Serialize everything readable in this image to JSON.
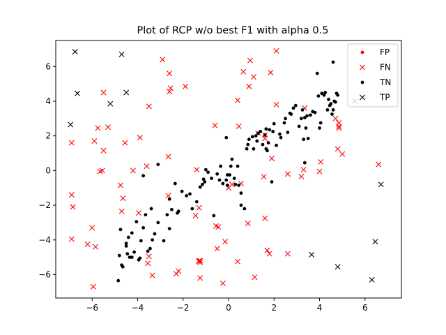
{
  "chart_data": {
    "type": "scatter",
    "title": "Plot of RCP w/o best F1 with alpha 0.5",
    "xlabel": "",
    "ylabel": "",
    "xlim": [
      -7.6,
      7.6
    ],
    "ylim": [
      -7.35,
      7.5
    ],
    "xticks": [
      -6,
      -4,
      -2,
      0,
      2,
      4,
      6
    ],
    "yticks": [
      -6,
      -4,
      -2,
      0,
      2,
      4,
      6
    ],
    "xtick_labels": [
      "−6",
      "−4",
      "−2",
      "0",
      "2",
      "4",
      "6"
    ],
    "ytick_labels": [
      "−6",
      "−4",
      "−2",
      "0",
      "2",
      "4",
      "6"
    ],
    "grid": false,
    "legend_position": "top-right",
    "series": [
      {
        "name": "FP",
        "marker": "dot",
        "color": "#ff0000",
        "points": []
      },
      {
        "name": "FN",
        "marker": "x",
        "color": "#ff0000",
        "points": [
          [
            -6.9,
            1.6
          ],
          [
            -6.9,
            -1.4
          ],
          [
            -6.85,
            -2.1
          ],
          [
            -6.9,
            -3.95
          ],
          [
            -6.0,
            -3.3
          ],
          [
            -6.2,
            -4.25
          ],
          [
            -5.85,
            -4.4
          ],
          [
            -5.95,
            -6.7
          ],
          [
            -5.9,
            1.7
          ],
          [
            -5.75,
            2.45
          ],
          [
            -5.65,
            -0.05
          ],
          [
            -5.55,
            0.0
          ],
          [
            -5.5,
            1.15
          ],
          [
            -5.3,
            2.5
          ],
          [
            -5.5,
            4.5
          ],
          [
            -4.75,
            -0.85
          ],
          [
            -4.65,
            -1.6
          ],
          [
            -4.7,
            -2.35
          ],
          [
            -4.55,
            1.6
          ],
          [
            -4.2,
            0.0
          ],
          [
            -3.95,
            -2.45
          ],
          [
            -3.9,
            1.9
          ],
          [
            -3.55,
            -5.35
          ],
          [
            -3.6,
            0.25
          ],
          [
            -3.5,
            3.7
          ],
          [
            -3.5,
            -4.95
          ],
          [
            -3.35,
            -6.05
          ],
          [
            -2.9,
            6.4
          ],
          [
            -2.6,
            5.6
          ],
          [
            -2.55,
            4.75
          ],
          [
            -2.6,
            4.55
          ],
          [
            -2.65,
            0.8
          ],
          [
            -2.65,
            -1.45
          ],
          [
            -2.3,
            -5.95
          ],
          [
            -2.2,
            -5.8
          ],
          [
            -1.9,
            4.85
          ],
          [
            -1.45,
            -2.6
          ],
          [
            -1.4,
            0.05
          ],
          [
            -1.3,
            -2.15
          ],
          [
            -1.25,
            -5.2
          ],
          [
            -1.25,
            -5.3
          ],
          [
            -1.3,
            -5.2
          ],
          [
            -1.3,
            -5.25
          ],
          [
            -1.25,
            -6.2
          ],
          [
            -0.6,
            2.6
          ],
          [
            -0.55,
            -3.2
          ],
          [
            -0.5,
            -4.5
          ],
          [
            -0.45,
            -3.25
          ],
          [
            -0.25,
            -6.5
          ],
          [
            -0.15,
            -4.1
          ],
          [
            0.0,
            -1.0
          ],
          [
            0.15,
            -0.8
          ],
          [
            0.4,
            -5.25
          ],
          [
            0.4,
            4.05
          ],
          [
            0.45,
            2.55
          ],
          [
            0.55,
            -0.75
          ],
          [
            0.65,
            5.7
          ],
          [
            0.85,
            -3.05
          ],
          [
            0.9,
            4.85
          ],
          [
            0.95,
            6.35
          ],
          [
            1.1,
            5.4
          ],
          [
            1.15,
            -6.15
          ],
          [
            1.3,
            2.15
          ],
          [
            1.55,
            -0.35
          ],
          [
            1.6,
            2.05
          ],
          [
            1.6,
            1.85
          ],
          [
            1.6,
            -2.75
          ],
          [
            1.7,
            -4.6
          ],
          [
            1.8,
            -4.8
          ],
          [
            1.85,
            5.65
          ],
          [
            1.9,
            0.7
          ],
          [
            2.1,
            3.8
          ],
          [
            2.1,
            6.9
          ],
          [
            2.6,
            -0.2
          ],
          [
            2.6,
            -4.8
          ],
          [
            3.2,
            -0.35
          ],
          [
            3.35,
            3.6
          ],
          [
            3.3,
            0.05
          ],
          [
            4.0,
            -0.05
          ],
          [
            4.05,
            0.5
          ],
          [
            4.7,
            3.0
          ],
          [
            4.8,
            1.25
          ],
          [
            4.85,
            2.75
          ],
          [
            4.85,
            2.55
          ],
          [
            4.85,
            2.45
          ],
          [
            5.0,
            0.95
          ],
          [
            5.55,
            4.0
          ],
          [
            6.6,
            0.35
          ]
        ]
      },
      {
        "name": "TN",
        "marker": "dot",
        "color": "#000000",
        "points": [
          [
            -4.85,
            -6.35
          ],
          [
            -4.8,
            -4.9
          ],
          [
            -4.7,
            -5.45
          ],
          [
            -4.65,
            -5.55
          ],
          [
            -4.75,
            -3.4
          ],
          [
            -4.5,
            -4.2
          ],
          [
            -4.5,
            -4.35
          ],
          [
            -4.45,
            -4.8
          ],
          [
            -4.4,
            -3.85
          ],
          [
            -4.35,
            -5.0
          ],
          [
            -4.25,
            -3.6
          ],
          [
            -4.25,
            -5.0
          ],
          [
            -4.15,
            -4.7
          ],
          [
            -4.05,
            -2.95
          ],
          [
            -3.95,
            -5.15
          ],
          [
            -3.9,
            -5.05
          ],
          [
            -3.85,
            -4.05
          ],
          [
            -3.75,
            -0.3
          ],
          [
            -3.75,
            -3.3
          ],
          [
            -3.65,
            -2.55
          ],
          [
            -3.55,
            -4.65
          ],
          [
            -3.45,
            -4.5
          ],
          [
            -3.4,
            -2.2
          ],
          [
            -3.35,
            -4.0
          ],
          [
            -3.25,
            -3.65
          ],
          [
            -3.1,
            -3.0
          ],
          [
            -3.1,
            0.35
          ],
          [
            -2.85,
            -4.05
          ],
          [
            -2.7,
            -2.55
          ],
          [
            -2.6,
            -3.35
          ],
          [
            -2.6,
            -1.65
          ],
          [
            -2.5,
            -2.25
          ],
          [
            -2.35,
            -0.75
          ],
          [
            -2.25,
            -2.45
          ],
          [
            -2.2,
            -2.35
          ],
          [
            -2.05,
            -1.2
          ],
          [
            -1.85,
            -1.45
          ],
          [
            -1.7,
            -1.35
          ],
          [
            -1.6,
            -2.2
          ],
          [
            -1.4,
            -1.8
          ],
          [
            -1.25,
            -0.95
          ],
          [
            -1.15,
            -0.8
          ],
          [
            -1.1,
            -0.5
          ],
          [
            -1.05,
            -0.65
          ],
          [
            -1.0,
            0.05
          ],
          [
            -0.9,
            -0.1
          ],
          [
            -0.75,
            -0.45
          ],
          [
            -0.65,
            -2.6
          ],
          [
            -0.5,
            -0.2
          ],
          [
            -0.4,
            -0.55
          ],
          [
            -0.35,
            0.25
          ],
          [
            -0.25,
            -0.75
          ],
          [
            -0.1,
            -0.55
          ],
          [
            -0.05,
            -0.85
          ],
          [
            -0.1,
            1.9
          ],
          [
            -0.05,
            -0.25
          ],
          [
            0.05,
            -0.25
          ],
          [
            0.1,
            0.25
          ],
          [
            0.15,
            0.65
          ],
          [
            0.25,
            -0.45
          ],
          [
            0.3,
            -0.8
          ],
          [
            0.4,
            0.25
          ],
          [
            0.45,
            -0.85
          ],
          [
            0.55,
            -1.3
          ],
          [
            0.55,
            -2.0
          ],
          [
            0.7,
            -2.2
          ],
          [
            0.8,
            1.25
          ],
          [
            0.85,
            1.5
          ],
          [
            0.9,
            1.8
          ],
          [
            1.05,
            1.95
          ],
          [
            1.1,
            1.25
          ],
          [
            1.2,
            2.0
          ],
          [
            1.25,
            1.7
          ],
          [
            1.3,
            2.15
          ],
          [
            1.4,
            2.25
          ],
          [
            1.5,
            1.5
          ],
          [
            1.6,
            2.05
          ],
          [
            1.65,
            2.4
          ],
          [
            1.65,
            1.25
          ],
          [
            1.7,
            1.15
          ],
          [
            1.75,
            1.6
          ],
          [
            1.8,
            2.35
          ],
          [
            1.9,
            -0.65
          ],
          [
            1.95,
            2.25
          ],
          [
            2.0,
            2.7
          ],
          [
            2.1,
            1.45
          ],
          [
            2.25,
            2.1
          ],
          [
            2.3,
            1.9
          ],
          [
            2.45,
            2.75
          ],
          [
            2.5,
            3.0
          ],
          [
            2.6,
            2.2
          ],
          [
            2.7,
            3.3
          ],
          [
            2.75,
            3.25
          ],
          [
            2.85,
            3.6
          ],
          [
            2.95,
            3.75
          ],
          [
            3.1,
            2.55
          ],
          [
            3.2,
            3.0
          ],
          [
            3.25,
            3.5
          ],
          [
            3.3,
            1.8
          ],
          [
            3.35,
            3.05
          ],
          [
            3.4,
            2.45
          ],
          [
            3.45,
            3.15
          ],
          [
            3.5,
            1.85
          ],
          [
            3.6,
            3.2
          ],
          [
            3.7,
            3.4
          ],
          [
            3.8,
            3.35
          ],
          [
            3.9,
            5.6
          ],
          [
            4.0,
            2.45
          ],
          [
            4.05,
            2.75
          ],
          [
            4.1,
            4.45
          ],
          [
            4.2,
            4.35
          ],
          [
            4.25,
            4.5
          ],
          [
            4.35,
            3.5
          ],
          [
            4.4,
            4.1
          ],
          [
            4.45,
            3.75
          ],
          [
            4.5,
            3.85
          ],
          [
            4.55,
            3.25
          ],
          [
            4.6,
            3.5
          ],
          [
            4.65,
            4.0
          ],
          [
            4.7,
            3.95
          ],
          [
            4.75,
            4.45
          ],
          [
            4.8,
            4.35
          ],
          [
            3.35,
            0.45
          ],
          [
            3.95,
            4.3
          ],
          [
            4.6,
            6.25
          ]
        ]
      },
      {
        "name": "TP",
        "marker": "x",
        "color": "#000000",
        "points": [
          [
            -6.75,
            6.85
          ],
          [
            -6.65,
            4.45
          ],
          [
            -6.95,
            2.65
          ],
          [
            -5.2,
            3.85
          ],
          [
            -4.7,
            6.7
          ],
          [
            -4.5,
            4.5
          ],
          [
            3.65,
            -4.85
          ],
          [
            4.8,
            -5.55
          ],
          [
            6.3,
            -6.3
          ],
          [
            6.45,
            -4.1
          ],
          [
            6.7,
            -0.8
          ]
        ]
      }
    ]
  }
}
